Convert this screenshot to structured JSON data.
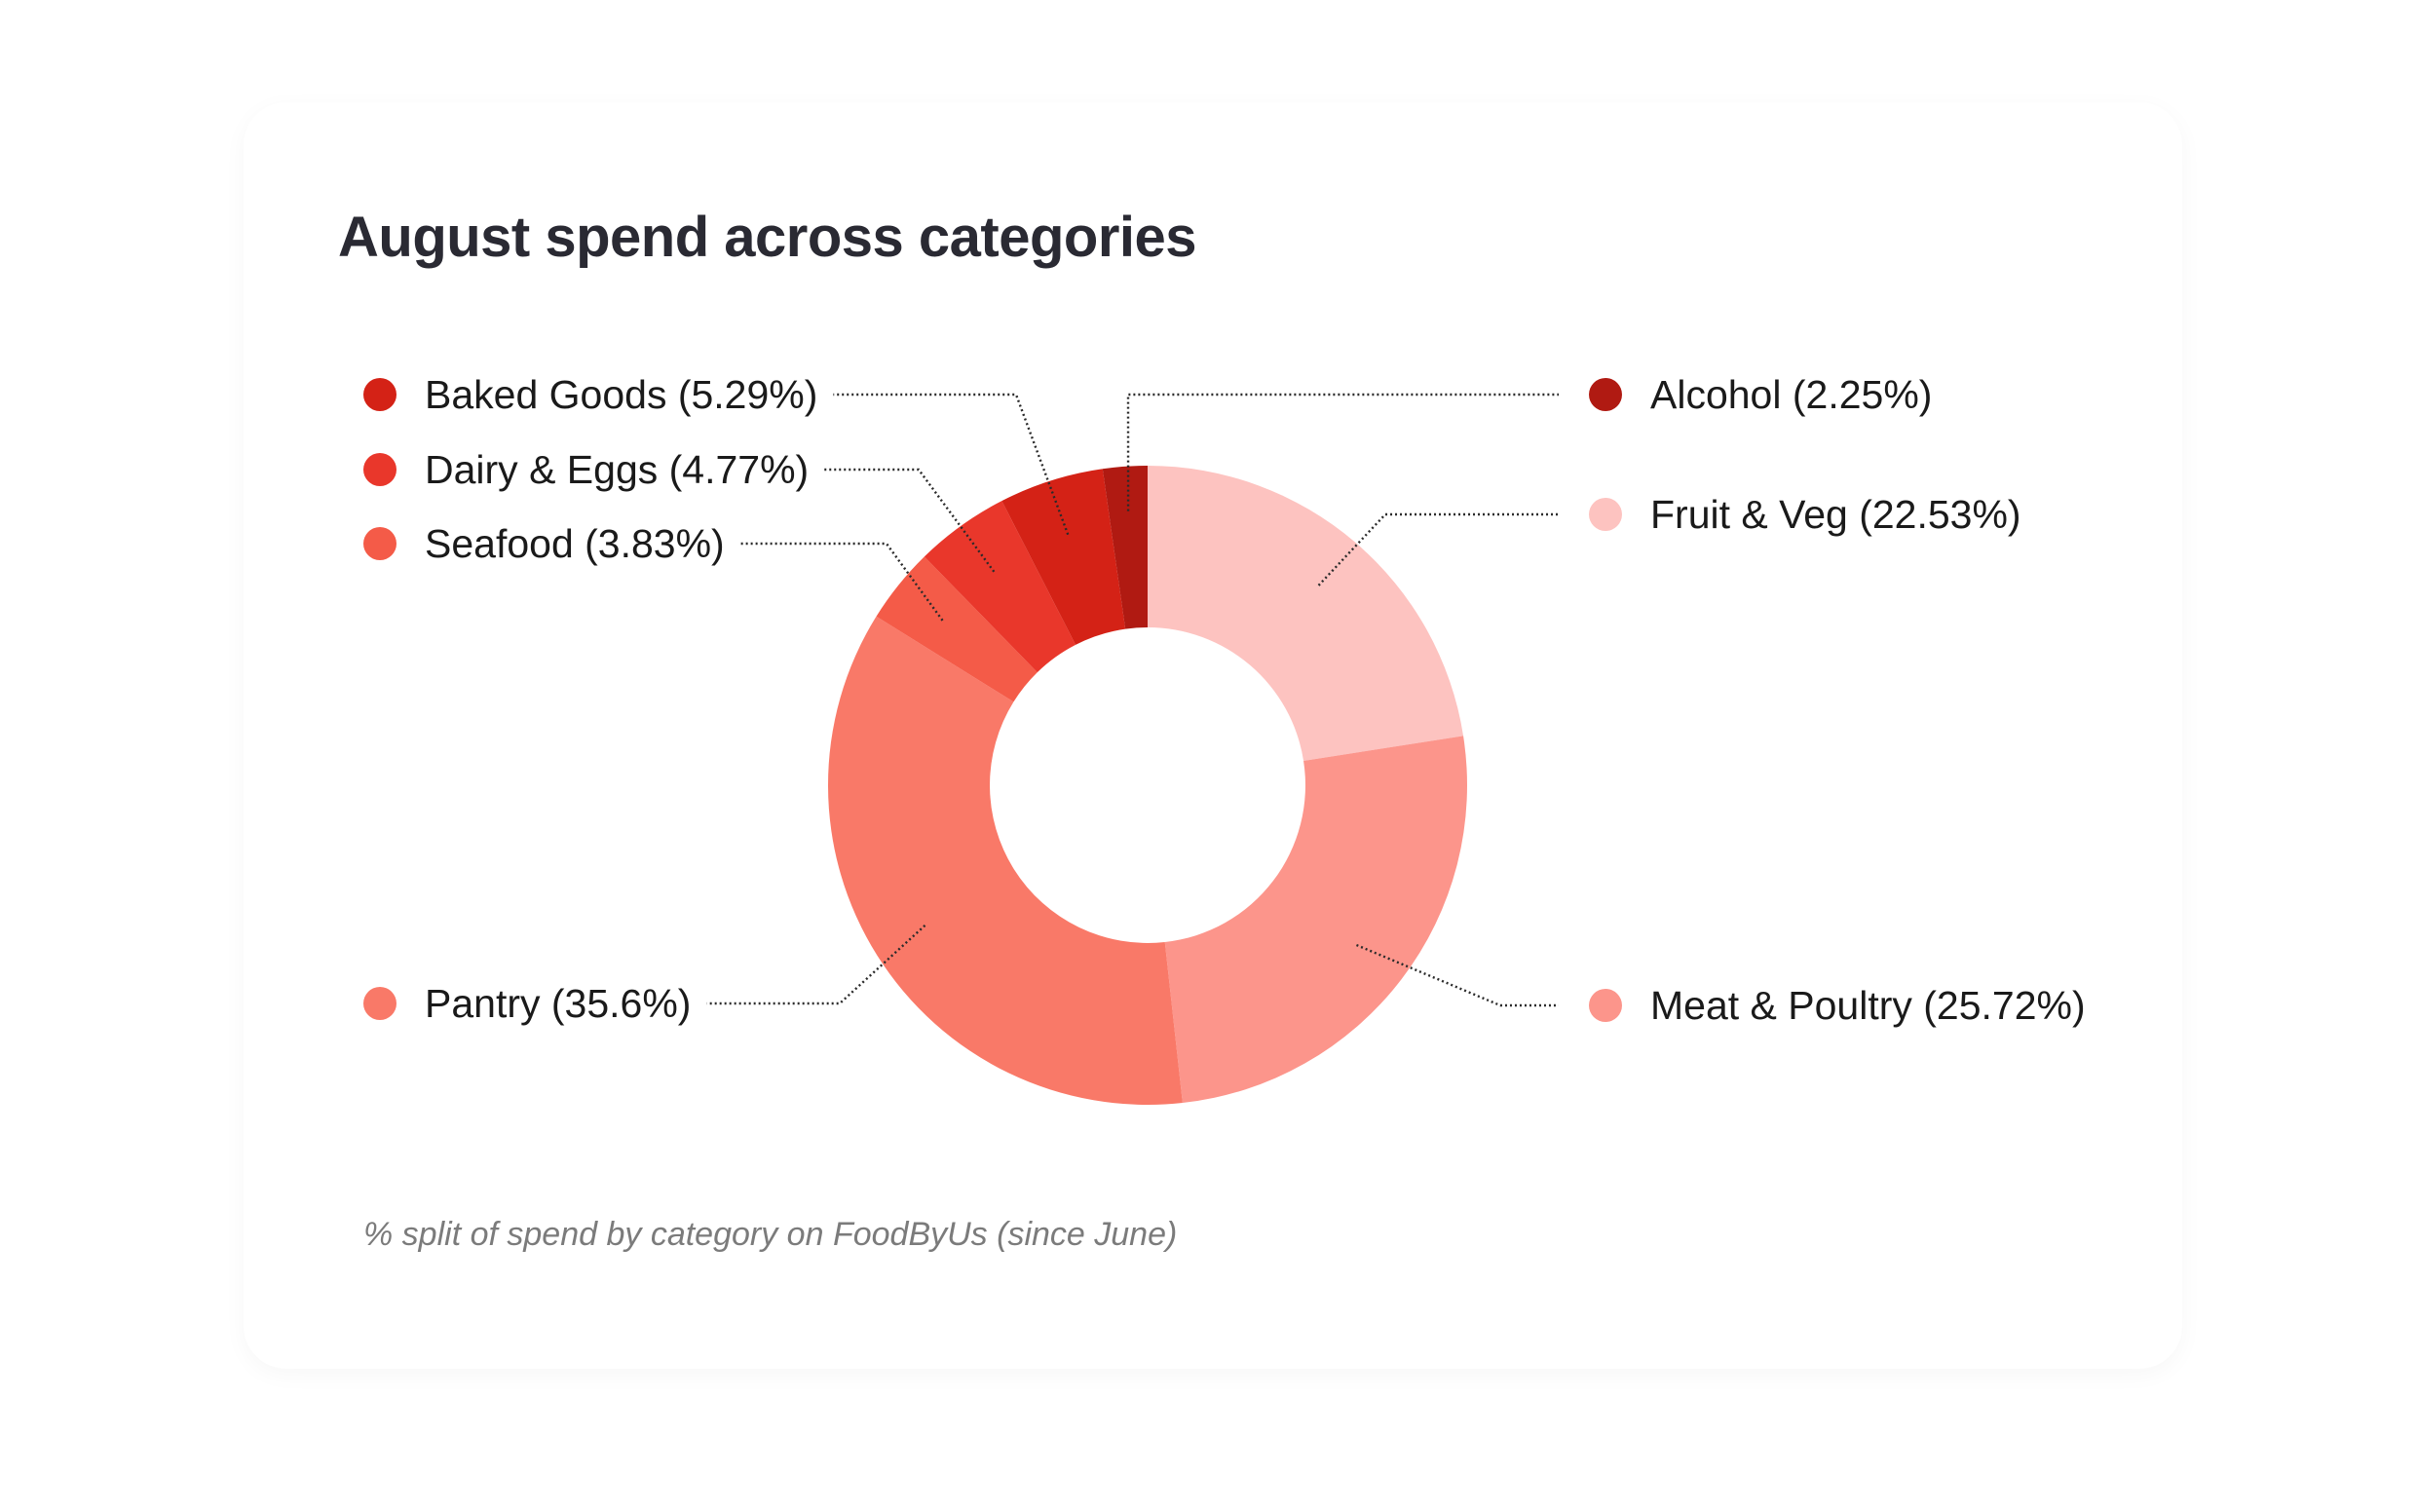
{
  "chart_data": {
    "type": "pie",
    "title": "August spend across categories",
    "footnote": "% split of spend by category on FoodByUs (since June)",
    "slices": [
      {
        "label": "Fruit & Veg (22.53%)",
        "value": 22.53,
        "color": "#fdc3c0"
      },
      {
        "label": "Meat & Poultry (25.72%)",
        "value": 25.72,
        "color": "#fc958b"
      },
      {
        "label": "Pantry (35.6%)",
        "value": 35.6,
        "color": "#f97968"
      },
      {
        "label": "Seafood (3.83%)",
        "value": 3.83,
        "color": "#f45b48"
      },
      {
        "label": "Dairy & Eggs (4.77%)",
        "value": 4.77,
        "color": "#e9372b"
      },
      {
        "label": "Baked Goods (5.29%)",
        "value": 5.29,
        "color": "#d42216"
      },
      {
        "label": "Alcohol (2.25%)",
        "value": 2.25,
        "color": "#b01a12"
      }
    ]
  }
}
